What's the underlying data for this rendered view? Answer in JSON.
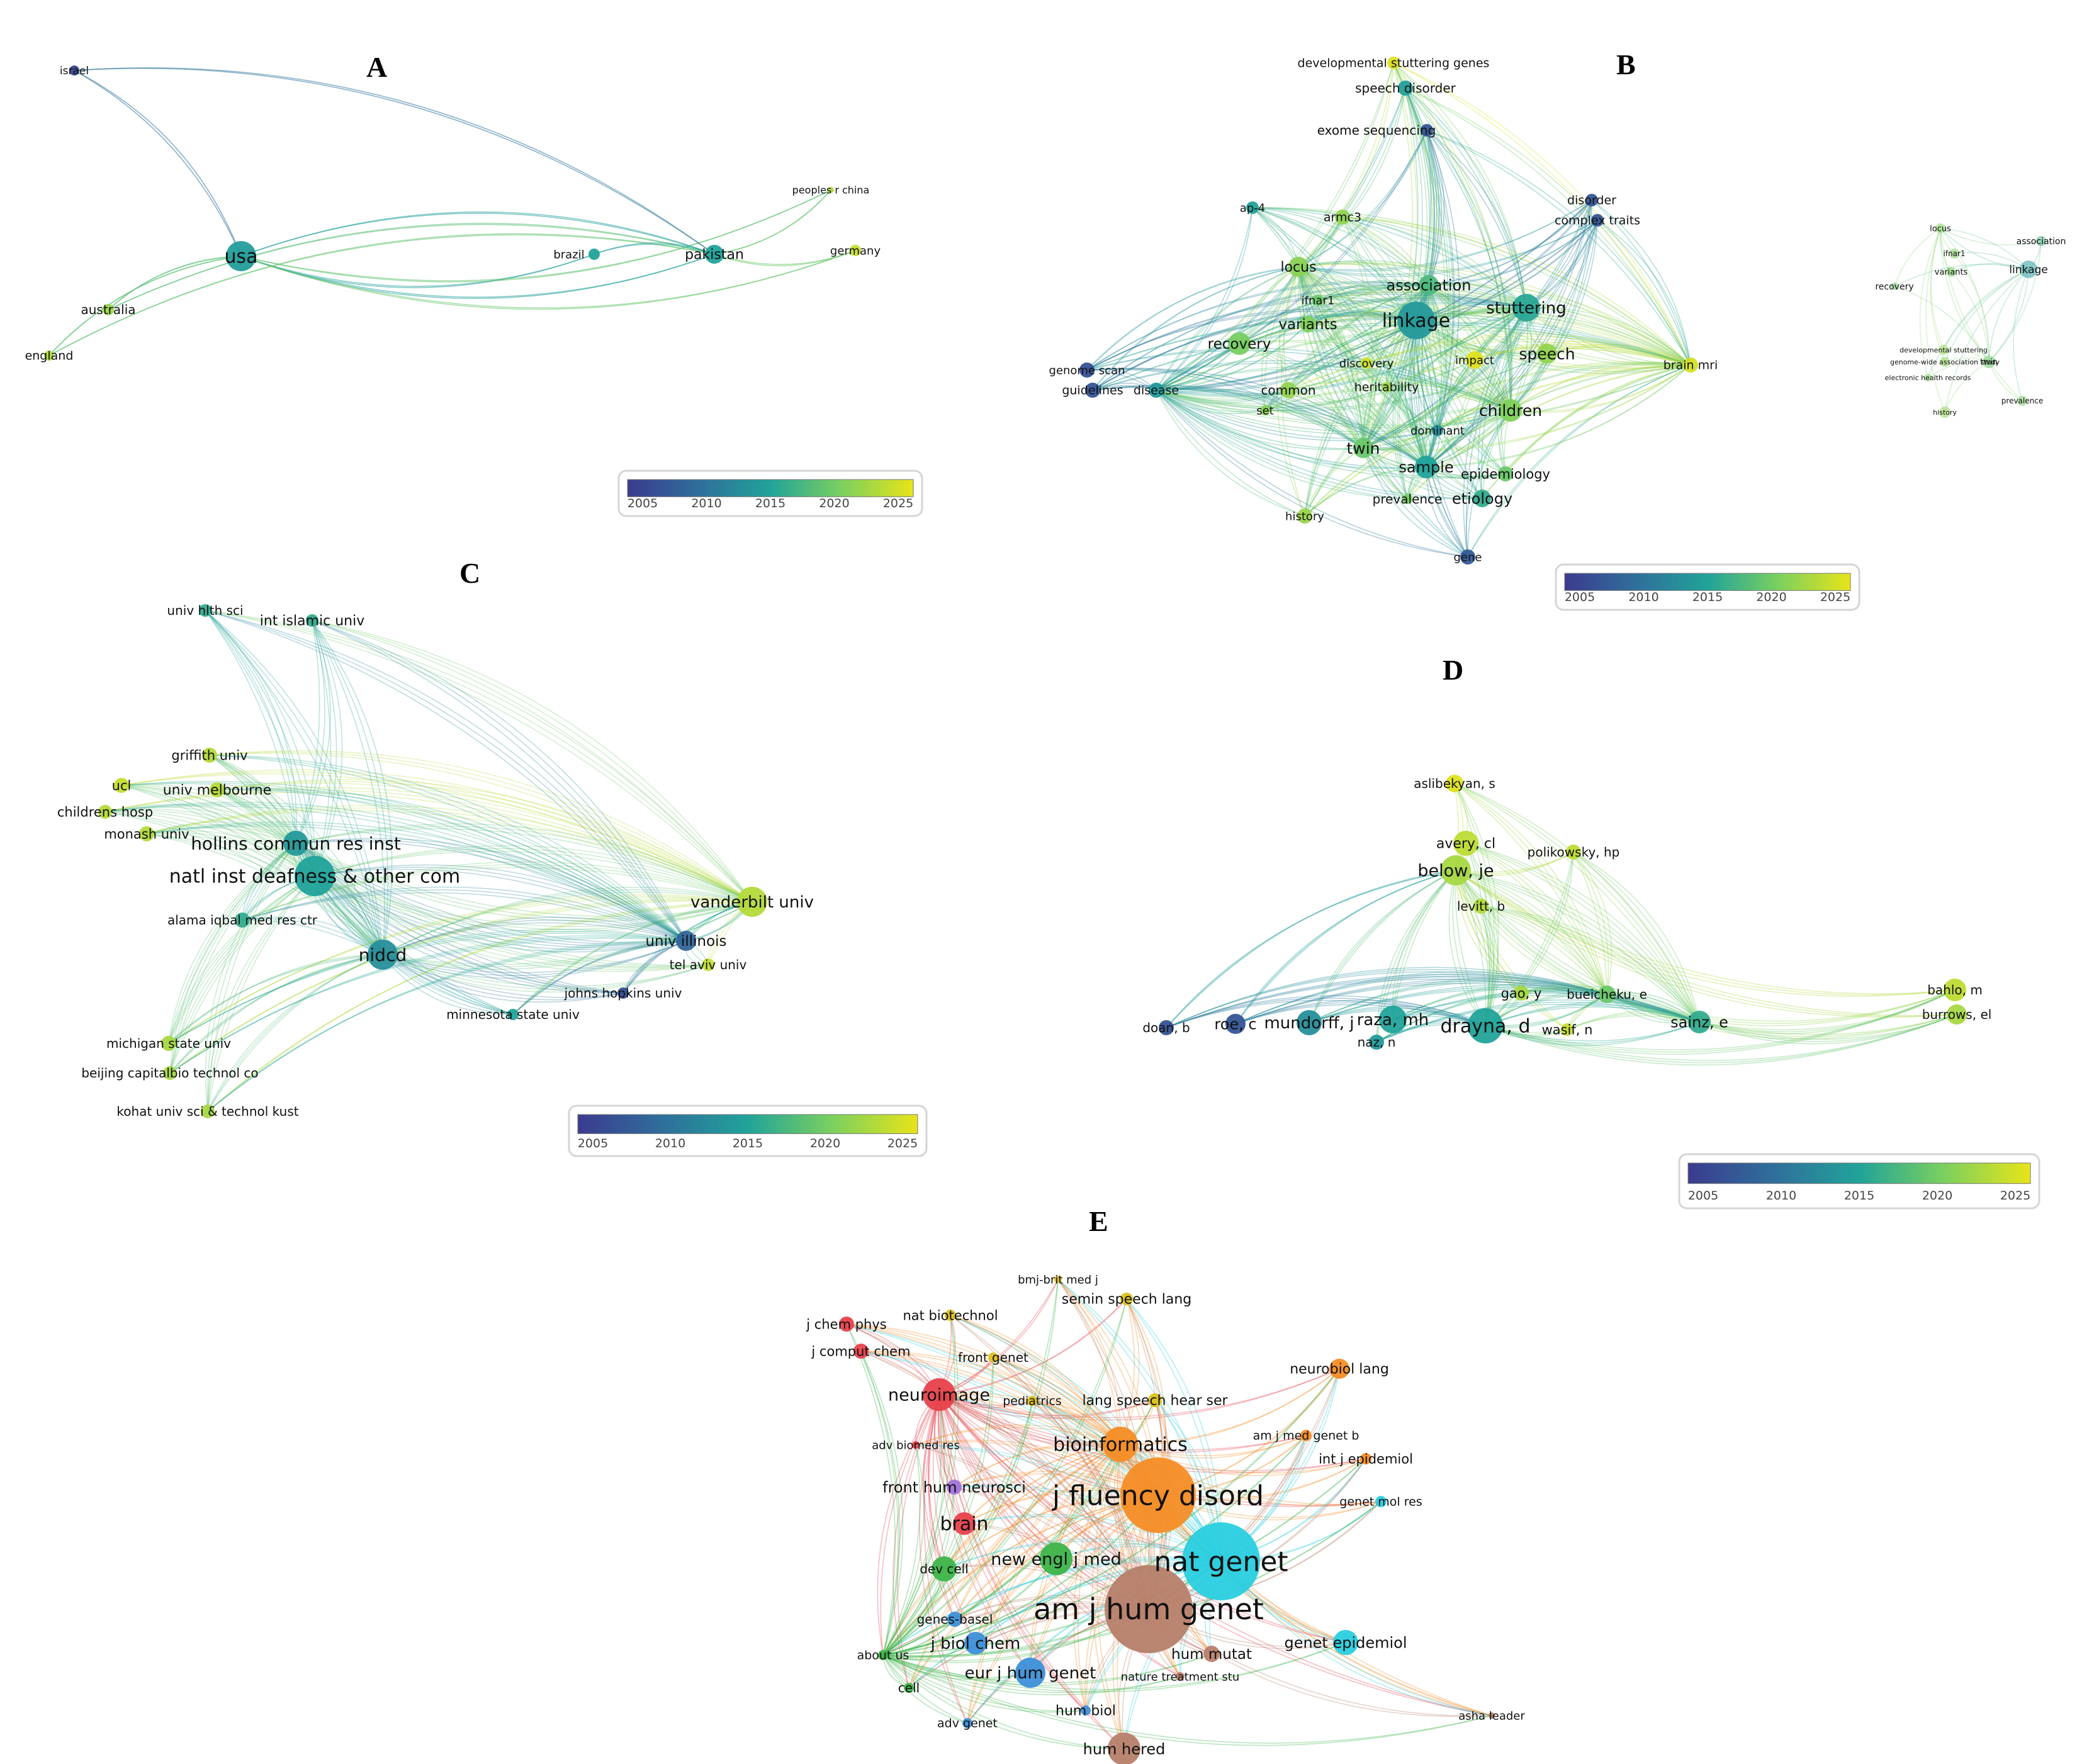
{
  "panels": {
    "A": {
      "letter": "A",
      "nodes": [
        "israel",
        "usa",
        "australia",
        "england",
        "brazil",
        "pakistan",
        "peoples r china",
        "germany"
      ]
    },
    "B": {
      "letter": "B",
      "nodes": [
        "developmental stuttering genes",
        "speech disorder",
        "exome sequencing",
        "ap-4",
        "armc3",
        "disorder",
        "complex traits",
        "locus",
        "association",
        "ifnar1",
        "variants",
        "linkage",
        "stuttering",
        "recovery",
        "speech",
        "brain mri",
        "discovery",
        "impact",
        "genome scan",
        "guidelines",
        "disease",
        "heritability",
        "common",
        "set",
        "children",
        "dominant",
        "twin",
        "sample",
        "epidemiology",
        "prevalence",
        "etiology",
        "history",
        "gene"
      ]
    },
    "B_inset": {
      "nodes": [
        "locus",
        "association",
        "ifnar1",
        "variants",
        "linkage",
        "developmental stuttering",
        "genome-wide association study",
        "electronic health records",
        "twin",
        "prevalence",
        "history",
        "recovery"
      ]
    },
    "C": {
      "letter": "C",
      "nodes": [
        "univ hlth sci",
        "int islamic univ",
        "griffith univ",
        "ucl",
        "univ melbourne",
        "childrens hosp",
        "monash univ",
        "hollins commun res inst",
        "natl inst deafness & other com",
        "vanderbilt univ",
        "alama iqbal med res ctr",
        "nidcd",
        "univ illinois",
        "tel aviv univ",
        "johns hopkins univ",
        "minnesota state univ",
        "michigan state univ",
        "beijing capitalbio technol co",
        "kohat univ sci & technol kust"
      ]
    },
    "D": {
      "letter": "D",
      "nodes": [
        "aslibekyan, s",
        "avery, cl",
        "polikowsky, hp",
        "below, je",
        "levitt, b",
        "gao, y",
        "bueicheku, e",
        "bahlo, m",
        "burrows, el",
        "doan, b",
        "roe, c",
        "mundorff, j",
        "raza, mh",
        "drayna, d",
        "wasif, n",
        "sainz, e",
        "naz, n"
      ]
    },
    "E": {
      "letter": "E",
      "nodes": [
        "bmj-brit med j",
        "semin speech lang",
        "j chem phys",
        "nat biotechnol",
        "j comput chem",
        "front genet",
        "neurobiol lang",
        "neuroimage",
        "pediatrics",
        "lang speech hear ser",
        "am j med genet b",
        "adv biomed res",
        "bioinformatics",
        "int j epidemiol",
        "front hum neurosci",
        "j fluency disord",
        "genet mol res",
        "brain",
        "new engl j med",
        "nat genet",
        "dev cell",
        "genes-basel",
        "am j hum genet",
        "j biol chem",
        "genet epidemiol",
        "about us",
        "eur j hum genet",
        "hum mutat",
        "nature treatment stu",
        "cell",
        "hum biol",
        "asha leader",
        "adv genet",
        "hum hered"
      ]
    }
  },
  "legend": {
    "ticks": [
      "2005",
      "2010",
      "2015",
      "2020",
      "2025"
    ],
    "colormap": [
      "#3b3b8f",
      "#2f6f9b",
      "#21a39a",
      "#7cd05e",
      "#e8e418"
    ]
  },
  "colors": {
    "red": "#e8414c",
    "orange": "#f58d25",
    "yellow": "#dcc11c",
    "green": "#3db54a",
    "blue": "#3d8fd8",
    "cyan": "#29cfe0",
    "purple": "#a473dc",
    "brown": "#b6806a",
    "pink": "#e873c8"
  }
}
